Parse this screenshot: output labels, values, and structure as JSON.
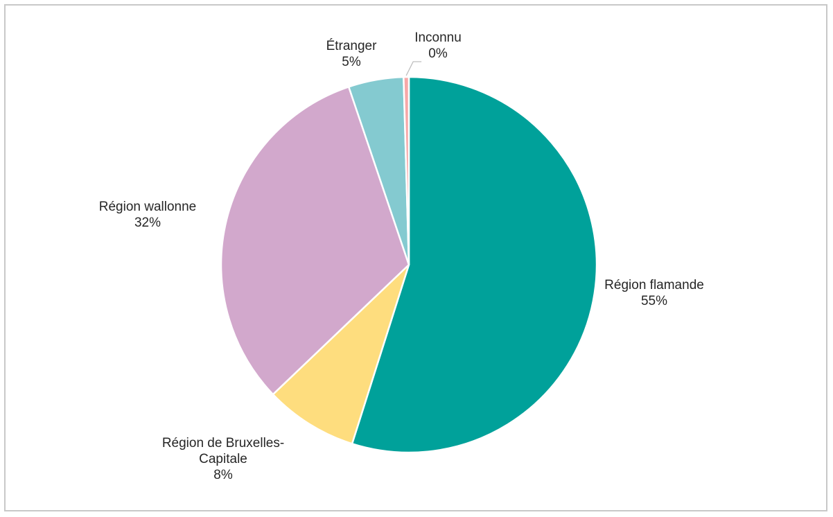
{
  "chart_data": {
    "type": "pie",
    "title": "",
    "legend": "none",
    "slices": [
      {
        "name": "Région flamande",
        "label_lines": [
          "Région flamande"
        ],
        "value": 55,
        "value_label": "55%",
        "color": "#00a19a"
      },
      {
        "name": "Région de Bruxelles-Capitale",
        "label_lines": [
          "Région de Bruxelles-",
          "Capitale"
        ],
        "value": 8,
        "value_label": "8%",
        "color": "#fedd7e"
      },
      {
        "name": "Région wallonne",
        "label_lines": [
          "Région wallonne"
        ],
        "value": 32,
        "value_label": "32%",
        "color": "#d2a8cc"
      },
      {
        "name": "Étranger",
        "label_lines": [
          "Étranger"
        ],
        "value": 4.75,
        "value_label": "5%",
        "color": "#84cad0"
      },
      {
        "name": "Inconnu",
        "label_lines": [
          "Inconnu"
        ],
        "value": 0.45,
        "value_label": "0%",
        "color": "#f7a8a8"
      }
    ]
  }
}
